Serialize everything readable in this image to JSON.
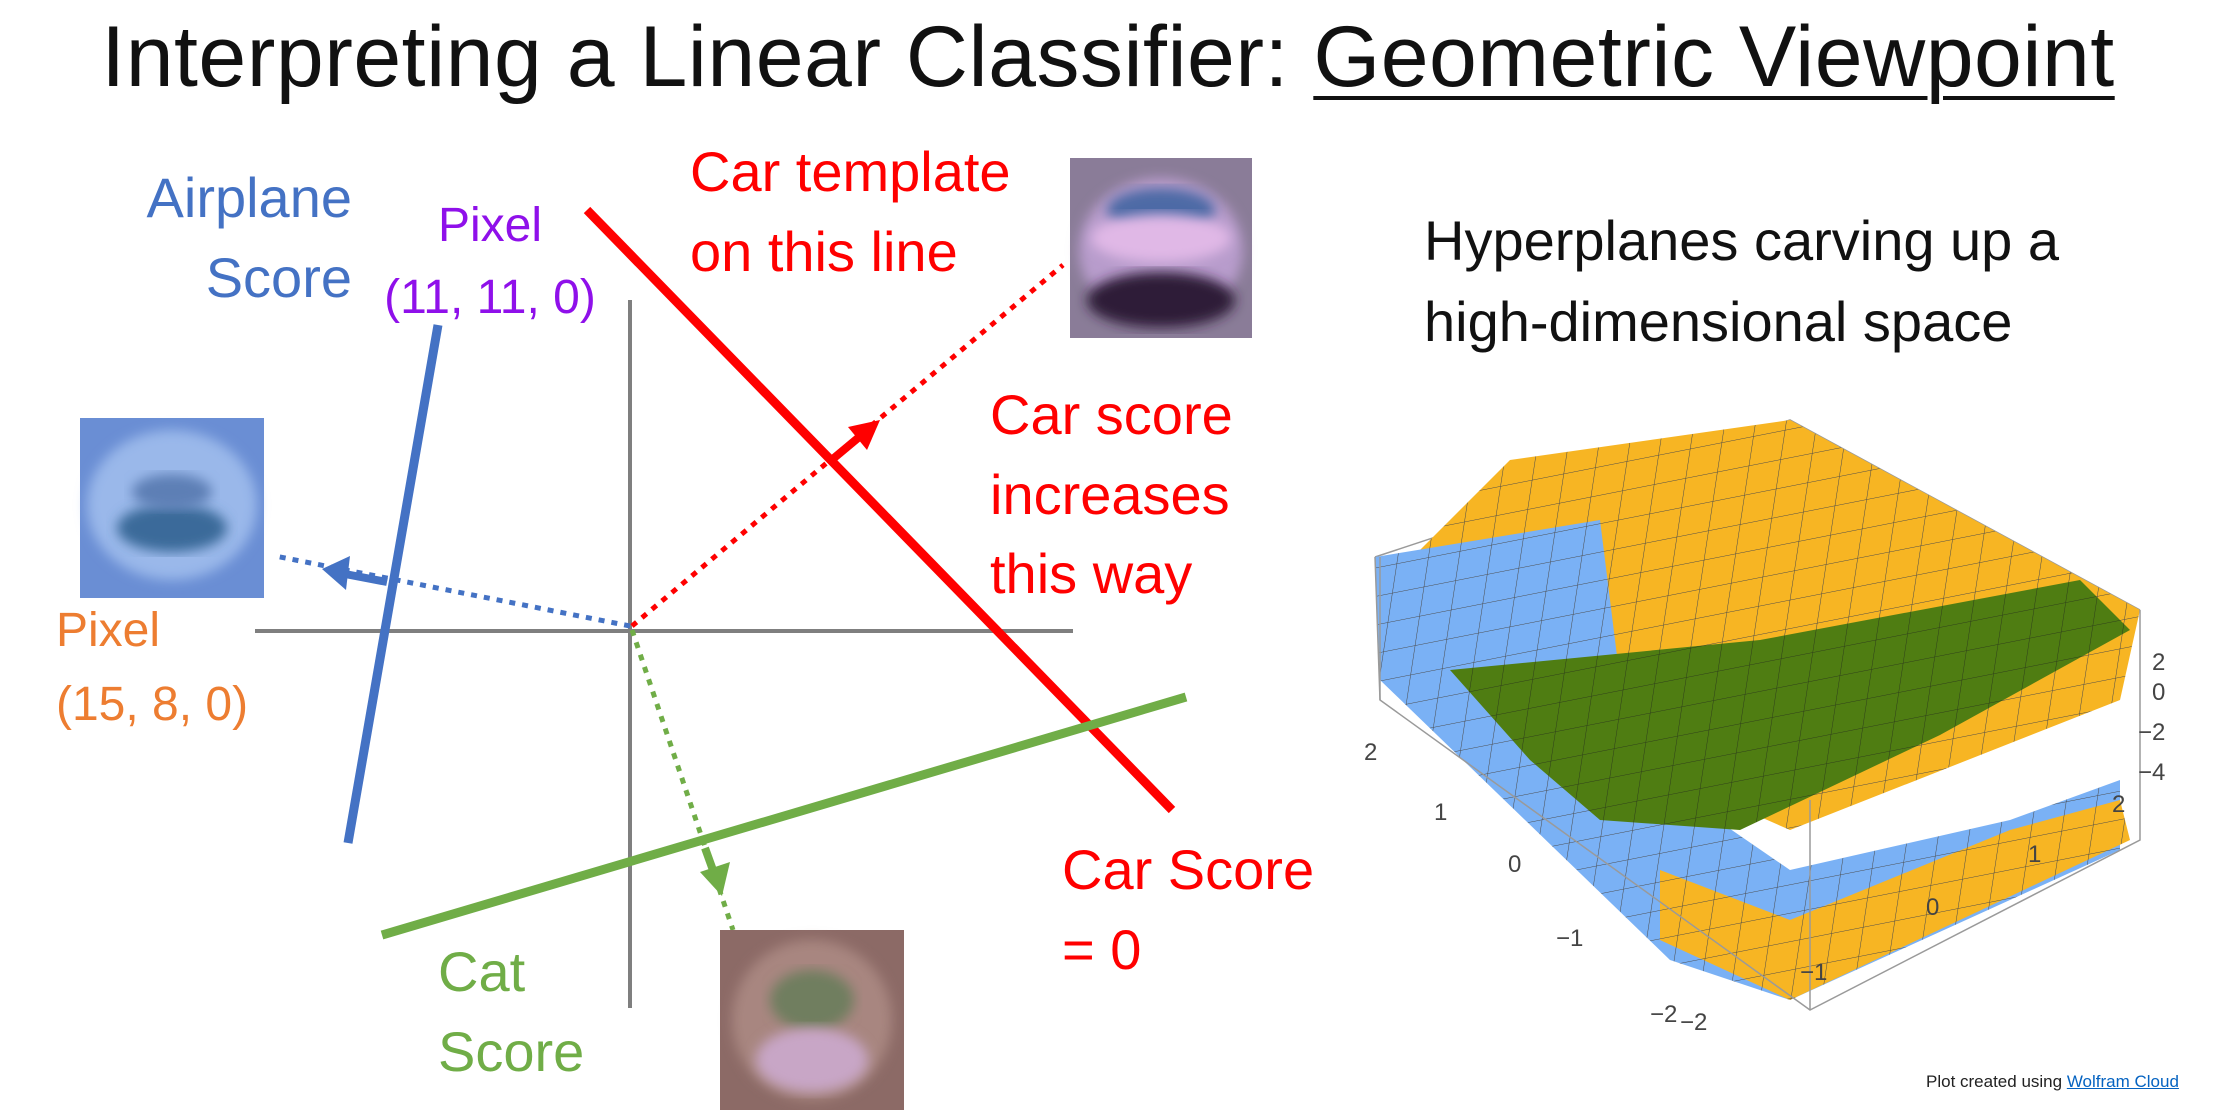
{
  "title": {
    "prefix": "Interpreting a Linear Classifier: ",
    "underlined": "Geometric Viewpoint"
  },
  "labels": {
    "airplane_score": [
      "Airplane",
      "Score"
    ],
    "pixel_purple": [
      "Pixel",
      "(11, 11, 0)"
    ],
    "pixel_orange": [
      "Pixel",
      "(15, 8, 0)"
    ],
    "car_template": [
      "Car template",
      "on this line"
    ],
    "car_score_increases": [
      "Car score",
      "increases",
      "this way"
    ],
    "car_score_zero": [
      "Car Score",
      "= 0"
    ],
    "cat_score": [
      "Cat",
      "Score"
    ]
  },
  "right_caption": [
    "Hyperplanes carving up a",
    "high-dimensional space"
  ],
  "credit": {
    "prefix": "Plot created using ",
    "link": "Wolfram Cloud"
  },
  "plot_ticks": {
    "z": [
      "2",
      "0",
      "−2",
      "−4"
    ],
    "left_axis": [
      "2",
      "1",
      "0",
      "−1",
      "−2"
    ],
    "bottom_axis": [
      "−2",
      "−1",
      "0",
      "1",
      "2"
    ]
  },
  "colors": {
    "airplane": "#4472c4",
    "car": "#ff0000",
    "cat": "#70ad47",
    "pixel_purple": "#8f10ea",
    "pixel_orange": "#ed7d31",
    "plane_blue": "#7ab1f5",
    "plane_orange": "#f7b523",
    "plane_green": "#4f7d12"
  },
  "icons": [
    "airplane-template-image",
    "car-template-image",
    "cat-template-image"
  ]
}
